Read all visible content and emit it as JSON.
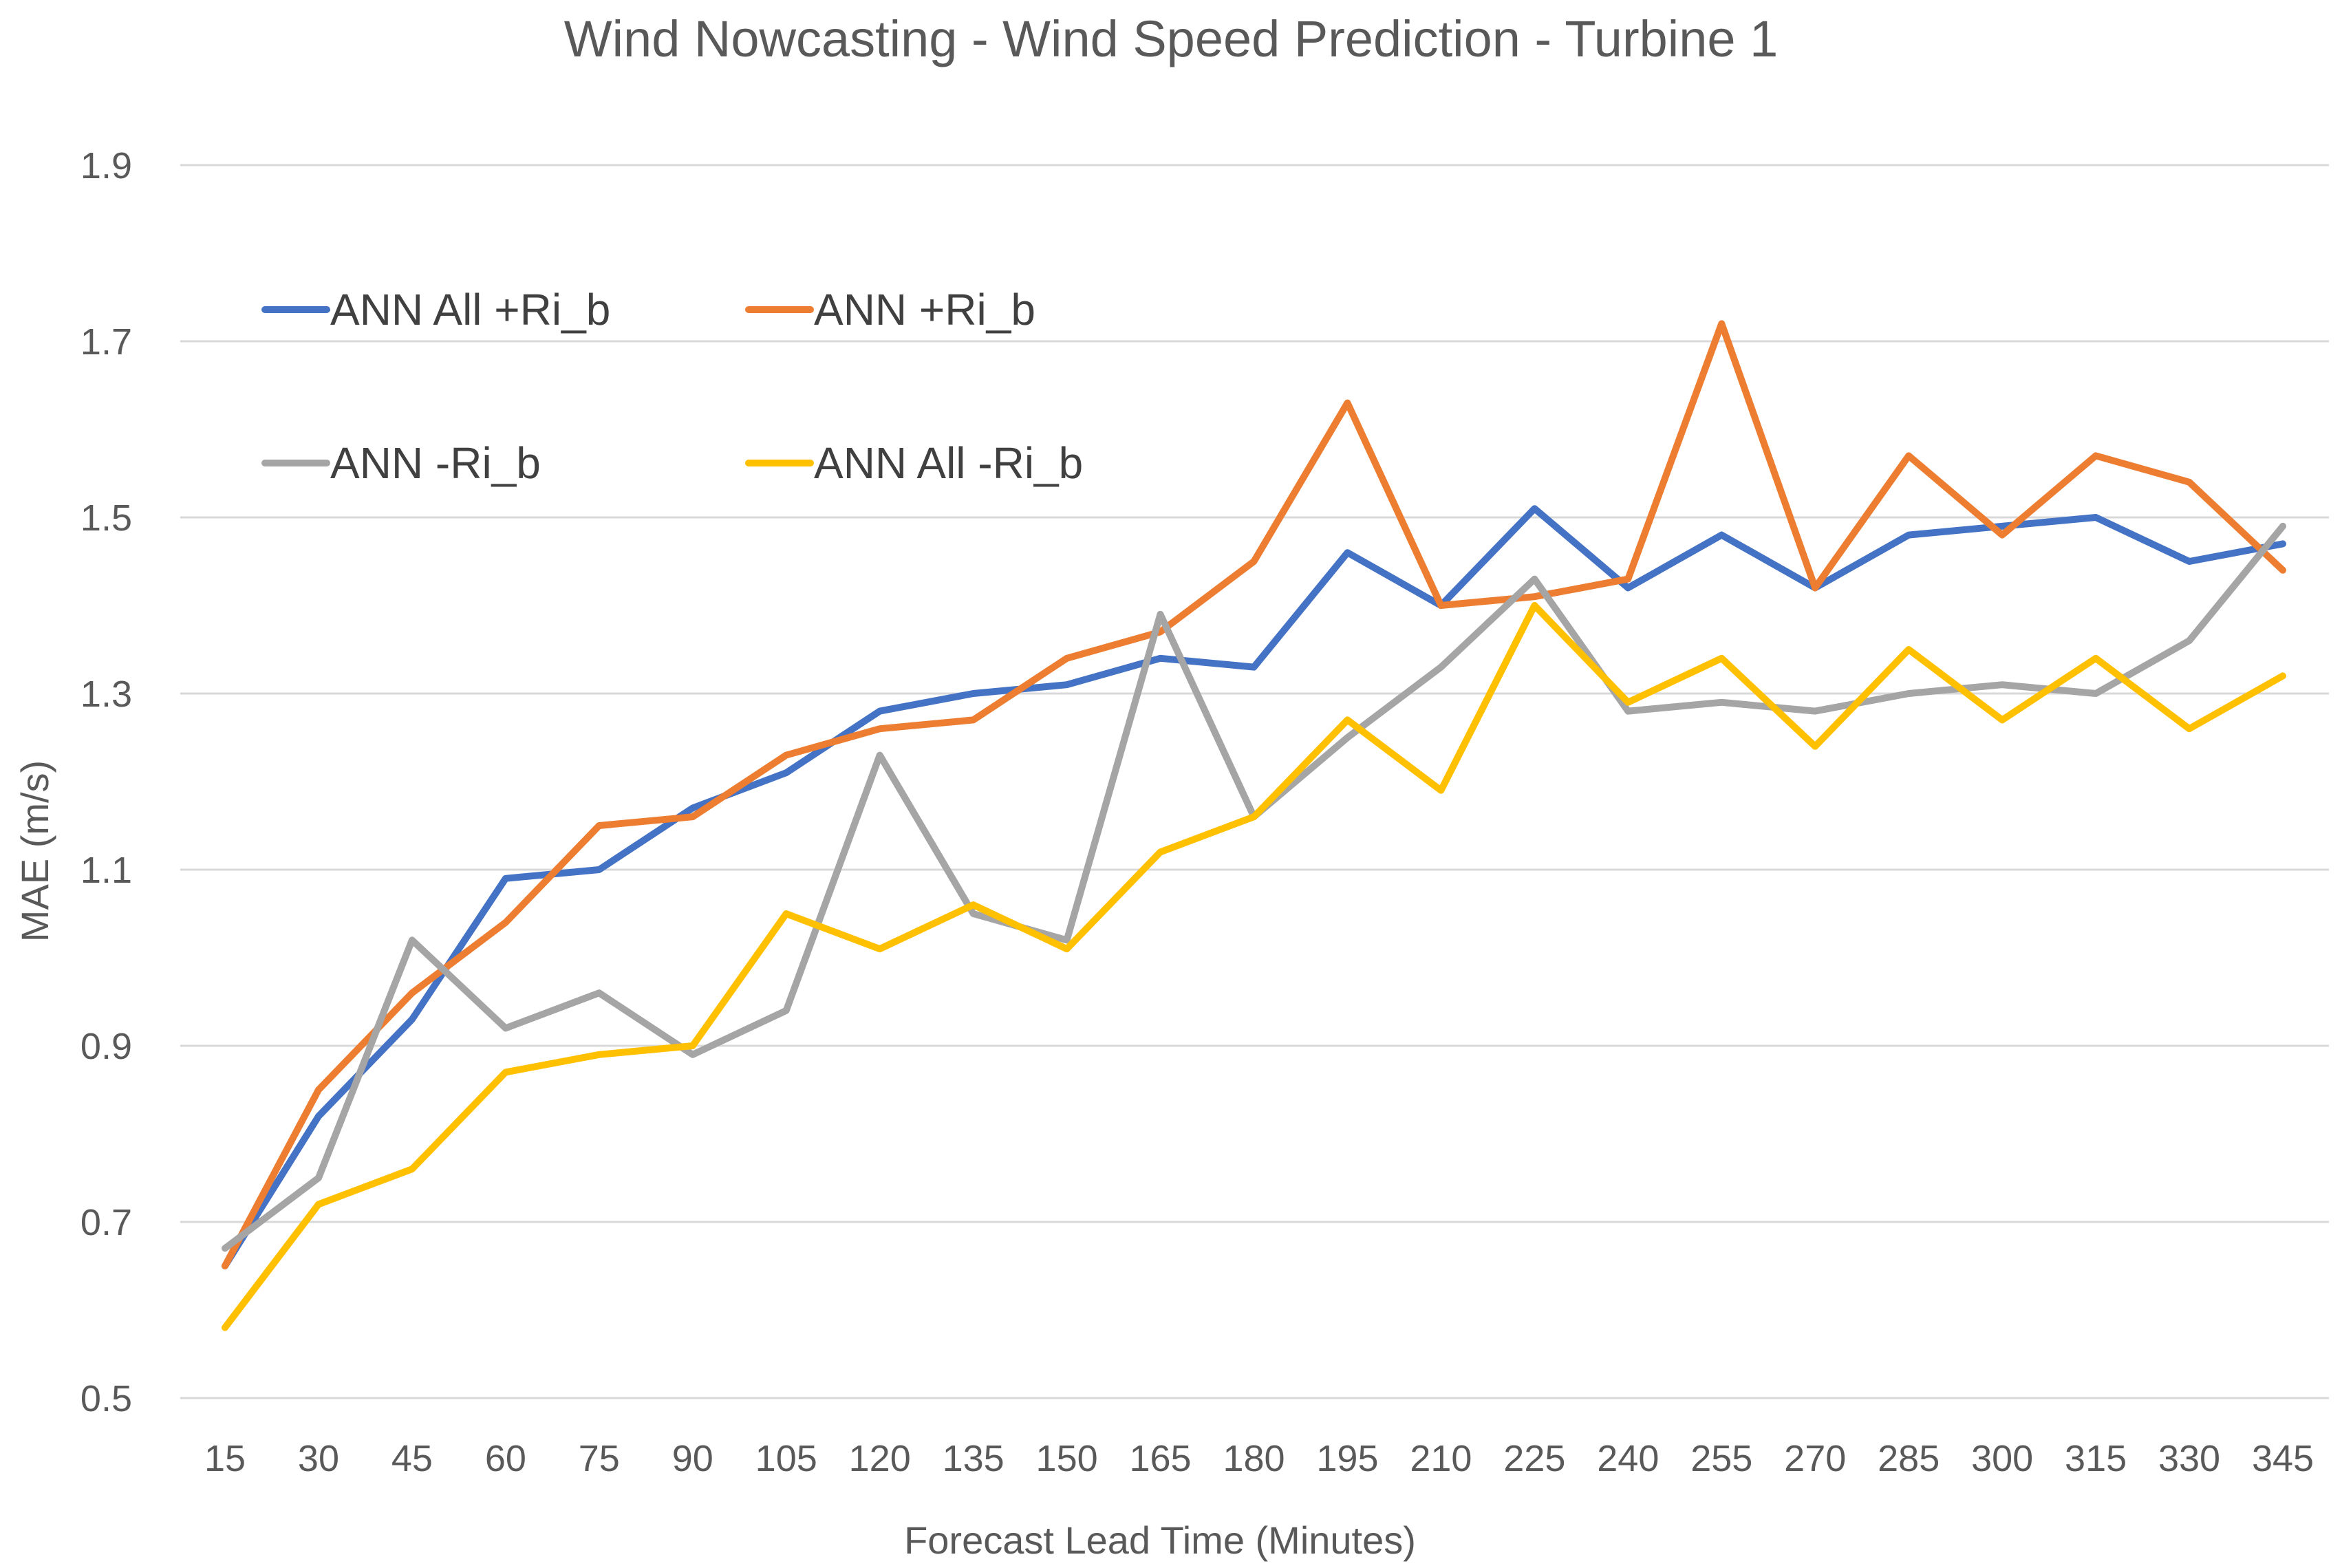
{
  "chart_data": {
    "type": "line",
    "title": "Wind Nowcasting - Wind Speed Prediction - Turbine 1",
    "xlabel": "Forecast Lead Time (Minutes)",
    "ylabel": "MAE (m/s)",
    "ylim": [
      0.5,
      1.9
    ],
    "yticks": [
      "0.5",
      "0.7",
      "0.9",
      "1.1",
      "1.3",
      "1.5",
      "1.7",
      "1.9"
    ],
    "categories": [
      "15",
      "30",
      "45",
      "60",
      "75",
      "90",
      "105",
      "120",
      "135",
      "150",
      "165",
      "180",
      "195",
      "210",
      "225",
      "240",
      "255",
      "270",
      "285",
      "300",
      "315",
      "330",
      "345"
    ],
    "grid": true,
    "legend_position": "upper-left inside plot",
    "series": [
      {
        "name": "ANN All +Ri_b",
        "color": "#4472c4",
        "values": [
          0.65,
          0.82,
          0.93,
          1.09,
          1.1,
          1.17,
          1.21,
          1.28,
          1.3,
          1.31,
          1.34,
          1.33,
          1.46,
          1.4,
          1.51,
          1.42,
          1.48,
          1.42,
          1.48,
          1.49,
          1.5,
          1.45,
          1.47
        ]
      },
      {
        "name": "ANN +Ri_b",
        "color": "#ed7d31",
        "values": [
          0.65,
          0.85,
          0.96,
          1.04,
          1.15,
          1.16,
          1.23,
          1.26,
          1.27,
          1.34,
          1.37,
          1.45,
          1.63,
          1.4,
          1.41,
          1.43,
          1.72,
          1.42,
          1.57,
          1.48,
          1.57,
          1.54,
          1.44
        ]
      },
      {
        "name": "ANN -Ri_b",
        "color": "#a5a5a5",
        "values": [
          0.67,
          0.75,
          1.02,
          0.92,
          0.96,
          0.89,
          0.94,
          1.23,
          1.05,
          1.02,
          1.39,
          1.16,
          1.25,
          1.33,
          1.43,
          1.28,
          1.29,
          1.28,
          1.3,
          1.31,
          1.3,
          1.36,
          1.49
        ]
      },
      {
        "name": "ANN All -Ri_b",
        "color": "#ffc000",
        "values": [
          0.58,
          0.72,
          0.76,
          0.87,
          0.89,
          0.9,
          1.05,
          1.01,
          1.06,
          1.01,
          1.12,
          1.16,
          1.27,
          1.19,
          1.4,
          1.29,
          1.34,
          1.24,
          1.35,
          1.27,
          1.34,
          1.26,
          1.32
        ]
      }
    ]
  }
}
